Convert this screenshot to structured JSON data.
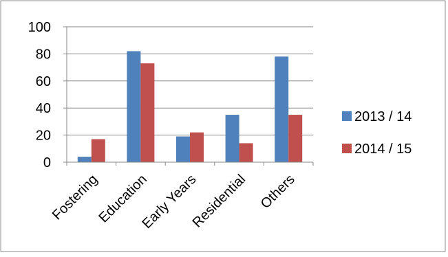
{
  "chart_data": {
    "type": "bar",
    "title": "",
    "xlabel": "",
    "ylabel": "",
    "categories": [
      "Fostering",
      "Education",
      "Early Years",
      "Residential",
      "Others"
    ],
    "series": [
      {
        "name": "2013 / 14",
        "color": "#4F81BD",
        "values": [
          4,
          82,
          19,
          35,
          78
        ]
      },
      {
        "name": "2014 / 15",
        "color": "#C0504D",
        "values": [
          17,
          73,
          22,
          14,
          35
        ]
      }
    ],
    "ylim": [
      0,
      100
    ],
    "yticks": [
      0,
      20,
      40,
      60,
      80,
      100
    ],
    "grid": true,
    "legend_position": "right"
  }
}
